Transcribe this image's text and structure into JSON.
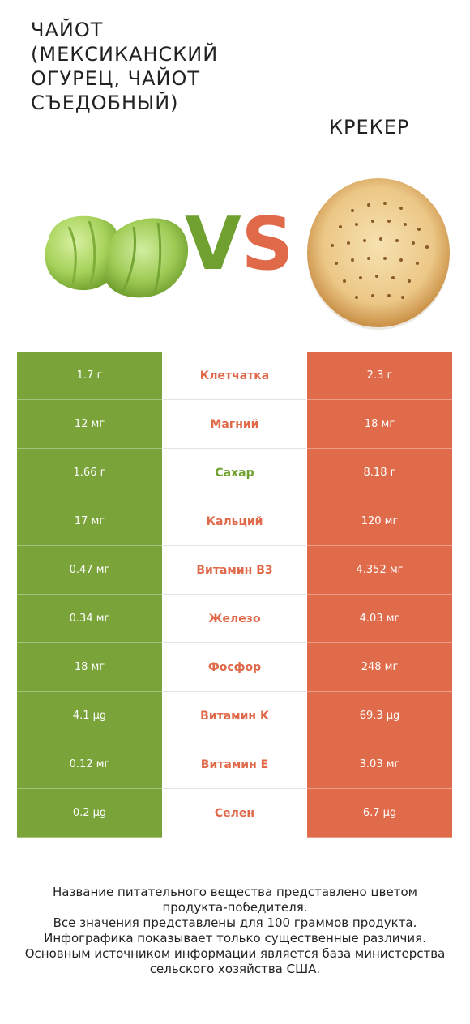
{
  "header": {
    "left_title": "Чайот (Мексиканский огурец, Чайот съедобный)",
    "right_title": "Крекер",
    "vs_v": "V",
    "vs_s": "S"
  },
  "colors": {
    "left_accent": "#7aa33a",
    "right_accent": "#e06b4b"
  },
  "rows": [
    {
      "left": "1.7 г",
      "name": "Клетчатка",
      "right": "2.3 г",
      "winner": "right"
    },
    {
      "left": "12 мг",
      "name": "Магний",
      "right": "18 мг",
      "winner": "right"
    },
    {
      "left": "1.66 г",
      "name": "Сахар",
      "right": "8.18 г",
      "winner": "left"
    },
    {
      "left": "17 мг",
      "name": "Кальций",
      "right": "120 мг",
      "winner": "right"
    },
    {
      "left": "0.47 мг",
      "name": "Витамин B3",
      "right": "4.352 мг",
      "winner": "right"
    },
    {
      "left": "0.34 мг",
      "name": "Железо",
      "right": "4.03 мг",
      "winner": "right"
    },
    {
      "left": "18 мг",
      "name": "Фосфор",
      "right": "248 мг",
      "winner": "right"
    },
    {
      "left": "4.1 µg",
      "name": "Витамин K",
      "right": "69.3 µg",
      "winner": "right"
    },
    {
      "left": "0.12 мг",
      "name": "Витамин E",
      "right": "3.03 мг",
      "winner": "right"
    },
    {
      "left": "0.2 µg",
      "name": "Селен",
      "right": "6.7 µg",
      "winner": "right"
    }
  ],
  "footer": [
    "Название питательного вещества представлено цветом",
    "продукта-победителя.",
    "Все значения представлены для 100 граммов продукта.",
    "Инфографика показывает только существенные различия.",
    "Основным источником информации является база министерства",
    "сельского хозяйства США."
  ]
}
